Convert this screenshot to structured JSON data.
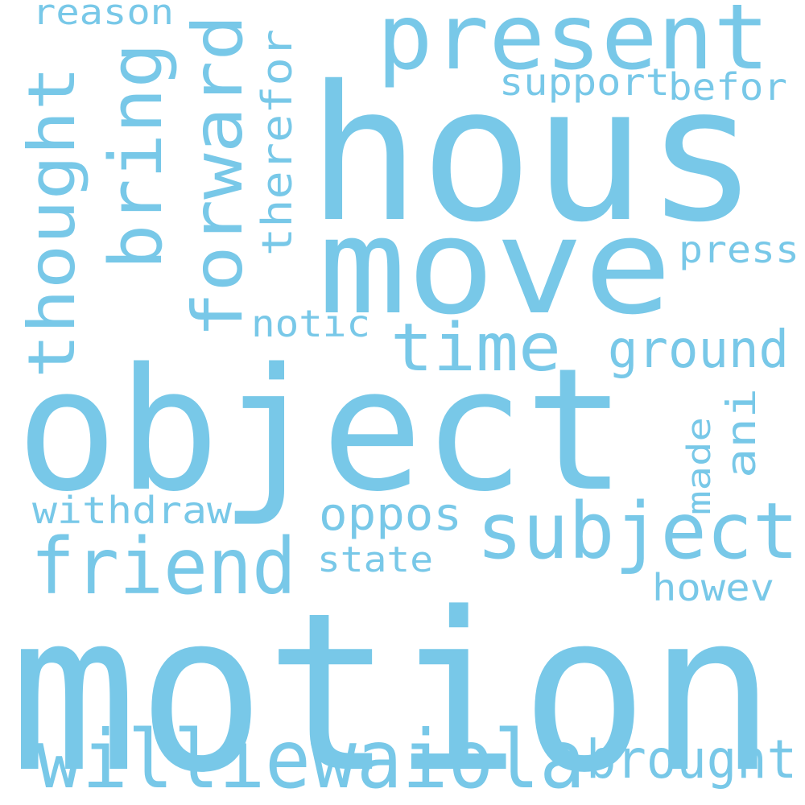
{
  "cloud": {
    "color": "#78c8e8",
    "background": "#ffffff",
    "words": [
      {
        "text": "motion"
      },
      {
        "text": "object"
      },
      {
        "text": "hous"
      },
      {
        "text": "move"
      },
      {
        "text": "present"
      },
      {
        "text": "subject"
      },
      {
        "text": "friend"
      },
      {
        "text": "williewaiola"
      },
      {
        "text": "time"
      },
      {
        "text": "bring"
      },
      {
        "text": "forward"
      },
      {
        "text": "thought"
      },
      {
        "text": "brought"
      },
      {
        "text": "ground"
      },
      {
        "text": "therefor"
      },
      {
        "text": "oppos"
      },
      {
        "text": "withdraw"
      },
      {
        "text": "support"
      },
      {
        "text": "befor"
      },
      {
        "text": "press"
      },
      {
        "text": "reason"
      },
      {
        "text": "notic"
      },
      {
        "text": "state"
      },
      {
        "text": "howev"
      },
      {
        "text": "ani"
      },
      {
        "text": "made"
      }
    ]
  }
}
